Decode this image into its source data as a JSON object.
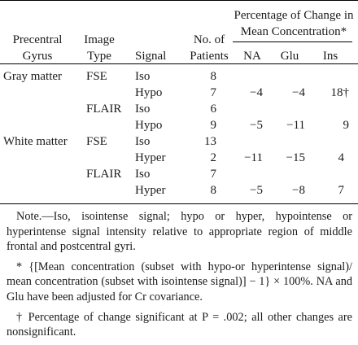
{
  "header": {
    "col1_line1": "Precentral",
    "col1_line2": "Gyrus",
    "col2_line1": "Image",
    "col2_line2": "Type",
    "col3": "Signal",
    "col4_line1": "No. of",
    "col4_line2": "Patients",
    "span_line1": "Percentage of Change in",
    "span_line2": "Mean Concentration*",
    "na": "NA",
    "glu": "Glu",
    "ins": "Ins"
  },
  "rows": [
    {
      "gyrus": "Gray matter",
      "type": "FSE",
      "signal": "Iso",
      "n": "8",
      "na": "",
      "glu": "",
      "ins": ""
    },
    {
      "gyrus": "",
      "type": "",
      "signal": "Hypo",
      "n": "7",
      "na": "−4",
      "glu": "−4",
      "ins": "18†"
    },
    {
      "gyrus": "",
      "type": "FLAIR",
      "signal": "Iso",
      "n": "6",
      "na": "",
      "glu": "",
      "ins": ""
    },
    {
      "gyrus": "",
      "type": "",
      "signal": "Hypo",
      "n": "9",
      "na": "−5",
      "glu": "−11",
      "ins": "9"
    },
    {
      "gyrus": "White matter",
      "type": "FSE",
      "signal": "Iso",
      "n": "13",
      "na": "",
      "glu": "",
      "ins": ""
    },
    {
      "gyrus": "",
      "type": "",
      "signal": "Hyper",
      "n": "2",
      "na": "−11",
      "glu": "−15",
      "ins": "4"
    },
    {
      "gyrus": "",
      "type": "FLAIR",
      "signal": "Iso",
      "n": "7",
      "na": "",
      "glu": "",
      "ins": ""
    },
    {
      "gyrus": "",
      "type": "",
      "signal": "Hyper",
      "n": "8",
      "na": "−5",
      "glu": "−8",
      "ins": "7"
    }
  ],
  "notes": {
    "note1": "Note.—Iso, isointense signal; hypo or hyper, hypointense or hyperintense signal intensity relative to appropriate region of middle frontal and postcentral gyri.",
    "note2": "* {[Mean concentration (subset with hypo-or hyperintense signal)/ mean concentration (subset with isointense signal)] − 1} × 100%. NA and Glu have been adjusted for Cr covariance.",
    "note3": "† Percentage of change significant at P = .002; all other changes are nonsignificant."
  }
}
